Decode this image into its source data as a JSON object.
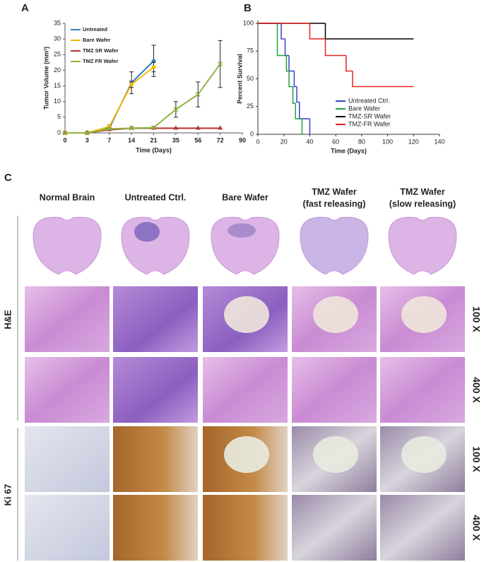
{
  "chart_data": [
    {
      "type": "line",
      "panel_label": "A",
      "y_label": "Tumor Volume (mm³)",
      "x_label": "Time (Days)",
      "categories": [
        "0",
        "3",
        "7",
        "14",
        "21",
        "35",
        "56",
        "72",
        "90"
      ],
      "ylim": [
        0,
        35
      ],
      "yticks": [
        0,
        5,
        10,
        15,
        20,
        25,
        30,
        35
      ],
      "legend": "upper left",
      "series": [
        {
          "name": "Untreated",
          "color": "#2f7fc1",
          "marker": "diamond",
          "values": [
            0,
            0,
            1.5,
            16,
            23,
            null,
            null,
            null,
            null
          ],
          "errors": [
            null,
            null,
            null,
            3.5,
            5,
            null,
            null,
            null,
            null
          ]
        },
        {
          "name": "Bare Wafer",
          "color": "#f2b705",
          "marker": "circle",
          "values": [
            0,
            0,
            2,
            15.5,
            21,
            null,
            null,
            null,
            null
          ],
          "errors": [
            null,
            null,
            0.5,
            1,
            1.5,
            null,
            null,
            null,
            null
          ]
        },
        {
          "name": "TMZ SR Wafer",
          "color": "#b8312f",
          "marker": "triangle",
          "values": [
            0,
            0,
            1,
            1.5,
            1.5,
            1.5,
            1.5,
            1.5,
            null
          ],
          "errors": [
            null,
            null,
            null,
            null,
            null,
            null,
            null,
            null,
            null
          ]
        },
        {
          "name": "TMZ FR Wafer",
          "color": "#8cb43c",
          "marker": "x",
          "values": [
            0,
            0,
            1.3,
            1.5,
            1.7,
            7.5,
            12.3,
            22,
            null
          ],
          "errors": [
            null,
            null,
            null,
            null,
            null,
            2.5,
            4,
            7.5,
            null
          ]
        }
      ]
    },
    {
      "type": "step",
      "panel_label": "B",
      "y_label": "Percent Survival",
      "x_label": "Time (Days)",
      "xlim": [
        0,
        140
      ],
      "xticks": [
        0,
        20,
        40,
        60,
        80,
        100,
        120,
        140
      ],
      "ylim": [
        0,
        100
      ],
      "yticks": [
        0,
        25,
        50,
        75,
        100
      ],
      "legend": "lower right",
      "series": [
        {
          "name": "Untreated Ctrl.",
          "color": "#3344cc",
          "x": [
            0,
            18,
            21,
            24,
            28,
            30,
            32,
            40
          ],
          "values": [
            100,
            86,
            71,
            57,
            43,
            29,
            14,
            0
          ]
        },
        {
          "name": "Bare Wafer",
          "color": "#22a045",
          "x": [
            0,
            15,
            22,
            24,
            27,
            29,
            34
          ],
          "values": [
            100,
            71,
            57,
            43,
            28,
            14,
            0
          ]
        },
        {
          "name": "TMZ-SR Wafer",
          "color": "#000000",
          "x": [
            0,
            52,
            120
          ],
          "values": [
            100,
            86,
            86
          ]
        },
        {
          "name": "TMZ-FR Wafer",
          "color": "#e62222",
          "x": [
            0,
            40,
            52,
            68,
            73,
            120
          ],
          "values": [
            100,
            86,
            71,
            57,
            43,
            43
          ]
        }
      ]
    }
  ],
  "panel_c": {
    "panel_label": "C",
    "columns": [
      [
        "Normal Brain"
      ],
      [
        "Untreated Ctrl."
      ],
      [
        "Bare Wafer"
      ],
      [
        "TMZ Wafer",
        "(fast releasing)"
      ],
      [
        "TMZ Wafer",
        "(slow releasing)"
      ]
    ],
    "stains": [
      "H&E",
      "Ki 67"
    ],
    "magnifications": [
      "100 X",
      "400 X",
      "100 X",
      "400 X"
    ]
  }
}
